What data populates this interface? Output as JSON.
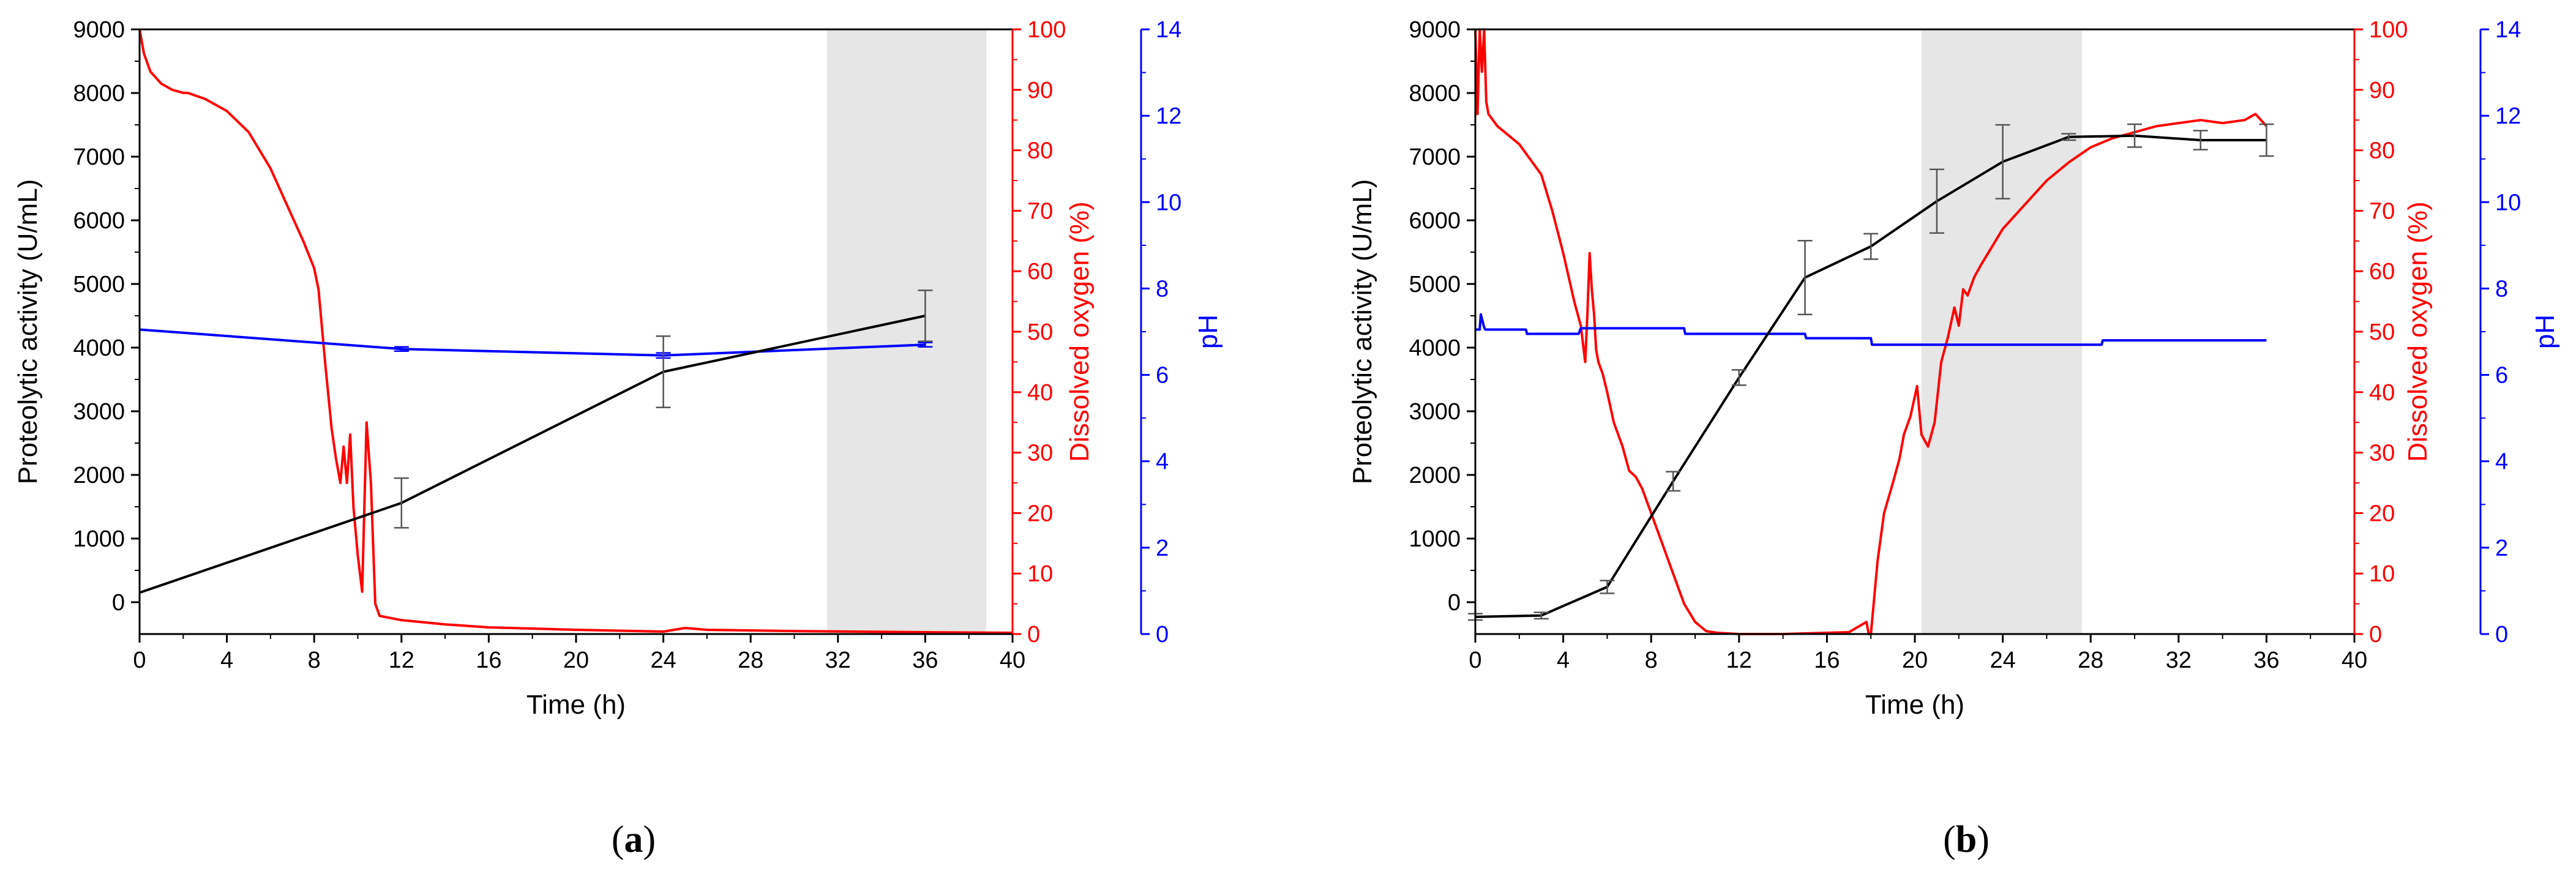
{
  "chart_data": [
    {
      "type": "line",
      "panel_label": "(a)",
      "panel_letter": "a",
      "xlabel": "Time (h)",
      "xlim": [
        0,
        40
      ],
      "x_ticks": [
        0,
        4,
        8,
        12,
        16,
        20,
        24,
        28,
        32,
        36,
        40
      ],
      "shaded_region": [
        31.5,
        38.8
      ],
      "axes": {
        "left": {
          "label": "Proteolytic activity (U/mL)",
          "lim": [
            -500,
            9000
          ],
          "ticks": [
            0,
            1000,
            2000,
            3000,
            4000,
            5000,
            6000,
            7000,
            8000,
            9000
          ],
          "color": "#000000"
        },
        "right1": {
          "label": "Dissolved oxygen (%)",
          "lim": [
            0,
            100
          ],
          "ticks": [
            0,
            10,
            20,
            30,
            40,
            50,
            60,
            70,
            80,
            90,
            100
          ],
          "color": "#ff0000"
        },
        "right2": {
          "label": "pH",
          "lim": [
            0,
            14
          ],
          "ticks": [
            0,
            2,
            4,
            6,
            8,
            10,
            12,
            14
          ],
          "color": "#0000ff"
        }
      },
      "series": [
        {
          "axis": "left",
          "color": "#000000",
          "marker": "errorbar",
          "x": [
            0,
            12,
            24,
            36
          ],
          "y": [
            150,
            1560,
            3620,
            4500
          ],
          "err": [
            0,
            390,
            560,
            400
          ]
        },
        {
          "axis": "right1",
          "color": "#ff0000",
          "x": [
            0,
            0.2,
            0.5,
            1,
            1.5,
            2,
            2.2,
            3,
            4,
            5,
            6,
            6.5,
            7,
            7.5,
            8,
            8.2,
            8.5,
            8.8,
            9,
            9.2,
            9.35,
            9.5,
            9.65,
            9.8,
            10,
            10.2,
            10.4,
            10.6,
            10.8,
            11,
            12,
            14,
            16,
            20,
            24,
            25,
            26,
            30,
            36,
            40
          ],
          "y": [
            100,
            96,
            93,
            91,
            90,
            89.5,
            89.5,
            88.5,
            86.5,
            83,
            77,
            73,
            69,
            65,
            60.5,
            57,
            45,
            34,
            29,
            25,
            31,
            25,
            33,
            21,
            13,
            7,
            35,
            25,
            5,
            3,
            2.3,
            1.6,
            1.1,
            0.7,
            0.4,
            1,
            0.7,
            0.5,
            0.3,
            0.2
          ]
        },
        {
          "axis": "right2",
          "color": "#0000ff",
          "marker": "errorbar",
          "x": [
            0,
            12,
            24,
            36
          ],
          "y": [
            7.05,
            6.6,
            6.45,
            6.7
          ],
          "err": [
            0,
            0.05,
            0.06,
            0.05
          ]
        }
      ]
    },
    {
      "type": "line",
      "panel_label": "(b)",
      "panel_letter": "b",
      "xlabel": "Time (h)",
      "xlim": [
        0,
        40
      ],
      "x_ticks": [
        0,
        4,
        8,
        12,
        16,
        20,
        24,
        28,
        32,
        36,
        40
      ],
      "shaded_region": [
        20.3,
        27.6
      ],
      "axes": {
        "left": {
          "label": "Proteolytic activity (U/mL)",
          "lim": [
            -500,
            9000
          ],
          "ticks": [
            0,
            1000,
            2000,
            3000,
            4000,
            5000,
            6000,
            7000,
            8000,
            9000
          ],
          "color": "#000000"
        },
        "right1": {
          "label": "Dissolved oxygen (%)",
          "lim": [
            0,
            100
          ],
          "ticks": [
            0,
            10,
            20,
            30,
            40,
            50,
            60,
            70,
            80,
            90,
            100
          ],
          "color": "#ff0000"
        },
        "right2": {
          "label": "pH",
          "lim": [
            0,
            14
          ],
          "ticks": [
            0,
            2,
            4,
            6,
            8,
            10,
            12,
            14
          ],
          "color": "#0000ff"
        }
      },
      "series": [
        {
          "axis": "left",
          "color": "#000000",
          "marker": "errorbar",
          "x": [
            0,
            3,
            6,
            9,
            12,
            15,
            18,
            21,
            24,
            27,
            30,
            33,
            36
          ],
          "y": [
            -230,
            -210,
            240,
            1900,
            3530,
            5100,
            5590,
            6300,
            6920,
            7310,
            7330,
            7260,
            7260
          ],
          "err": [
            50,
            50,
            100,
            150,
            120,
            580,
            200,
            500,
            580,
            50,
            180,
            150,
            250
          ]
        },
        {
          "axis": "right1",
          "color": "#ff0000",
          "x": [
            0,
            0.1,
            0.2,
            0.3,
            0.4,
            0.5,
            0.6,
            1,
            2,
            3,
            3.5,
            4,
            4.5,
            4.8,
            5,
            5.1,
            5.2,
            5.3,
            5.4,
            5.5,
            5.6,
            5.8,
            6,
            6.3,
            6.7,
            7,
            7.3,
            7.6,
            8,
            8.5,
            9,
            9.5,
            10,
            10.5,
            11,
            12,
            14,
            17,
            17.8,
            17.9,
            18,
            18.3,
            18.6,
            19,
            19.3,
            19.5,
            19.8,
            20.1,
            20.3,
            20.6,
            20.9,
            21.2,
            21.5,
            21.8,
            22,
            22.2,
            22.4,
            22.7,
            23,
            23.5,
            24,
            25,
            26,
            27,
            28,
            29,
            30,
            31,
            32,
            33,
            34,
            35,
            35.5,
            36
          ],
          "y": [
            100,
            86,
            100,
            93,
            100,
            88,
            86,
            84,
            81,
            76,
            70,
            63,
            55,
            51,
            45,
            53,
            63,
            57,
            53,
            47,
            45,
            43,
            40,
            35,
            31,
            27,
            26,
            24,
            20,
            15,
            10,
            5,
            2,
            0.5,
            0.2,
            0,
            0,
            0.3,
            2,
            0,
            0,
            12,
            20,
            25,
            29,
            33,
            36,
            41,
            33,
            31,
            35,
            45,
            49,
            54,
            51,
            57,
            56,
            59,
            61,
            64,
            67,
            71,
            75,
            78,
            80.5,
            82,
            83,
            84,
            84.5,
            85,
            84.5,
            85,
            86,
            84
          ]
        },
        {
          "axis": "right2",
          "color": "#0000ff",
          "marker": "errorbar",
          "x": [
            0,
            0.2,
            0.25,
            0.4,
            0.45,
            2.3,
            2.35,
            4.7,
            4.8,
            9.5,
            9.55,
            15,
            15.05,
            18,
            18.05,
            28.5,
            28.55,
            36
          ],
          "y": [
            7.05,
            7.05,
            7.4,
            7.1,
            7.05,
            7.05,
            6.95,
            6.95,
            7.08,
            7.08,
            6.95,
            6.95,
            6.85,
            6.85,
            6.7,
            6.7,
            6.8,
            6.8
          ],
          "err": []
        }
      ]
    }
  ]
}
